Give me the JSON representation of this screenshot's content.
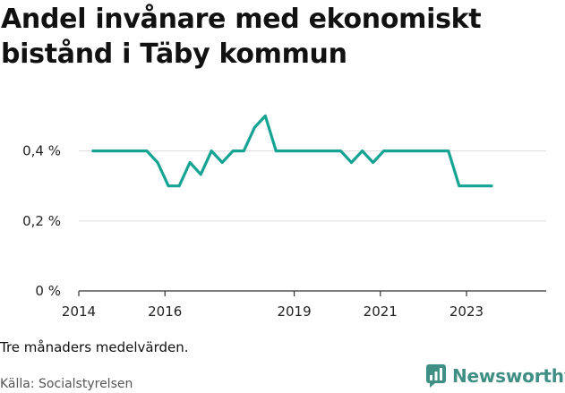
{
  "title": "Andel invånare med ekonomiskt bistånd i Täby kommun",
  "note": "Tre månaders medelvärden.",
  "source": "Källa: Socialstyrelsen",
  "brand": {
    "name": "Newsworthy",
    "icon": "bar-chart-speech-bubble-icon",
    "color": "#3f8f84"
  },
  "chart_data": {
    "type": "line",
    "title": "Andel invånare med ekonomiskt bistånd i Täby kommun",
    "xlabel": "",
    "ylabel": "",
    "x_ticks": [
      "2014",
      "2016",
      "2019",
      "2021",
      "2023"
    ],
    "y_ticks": [
      "0 %",
      "0,2 %",
      "0,4 %"
    ],
    "ylim": [
      0,
      0.55
    ],
    "grid": true,
    "legend": "none",
    "color": "#16a394",
    "series": [
      {
        "x": [
          2014.33,
          2014.58,
          2014.83,
          2015.08,
          2015.33,
          2015.58,
          2015.83,
          2016.08,
          2016.33,
          2016.58,
          2016.83,
          2017.08,
          2017.33,
          2017.58,
          2017.83,
          2018.08,
          2018.33,
          2018.58,
          2018.83,
          2019.08,
          2019.33,
          2019.58,
          2019.83,
          2020.08,
          2020.33,
          2020.58,
          2020.83,
          2021.08,
          2021.33,
          2021.58,
          2021.83,
          2022.08,
          2022.33,
          2022.58,
          2022.83,
          2023.08,
          2023.33,
          2023.58
        ],
        "values": [
          0.4,
          0.4,
          0.4,
          0.4,
          0.4,
          0.4,
          0.367,
          0.3,
          0.3,
          0.367,
          0.333,
          0.4,
          0.367,
          0.4,
          0.4,
          0.467,
          0.5,
          0.4,
          0.4,
          0.4,
          0.4,
          0.4,
          0.4,
          0.4,
          0.367,
          0.4,
          0.367,
          0.4,
          0.4,
          0.4,
          0.4,
          0.4,
          0.4,
          0.4,
          0.3,
          0.3,
          0.3,
          0.3
        ]
      }
    ]
  }
}
